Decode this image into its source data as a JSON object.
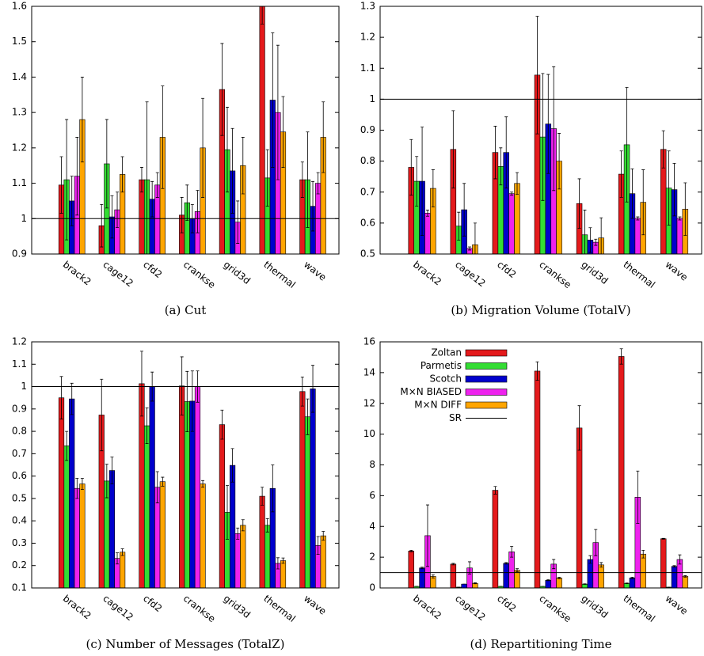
{
  "chart_data": [
    {
      "type": "bar",
      "caption": "(a) Cut",
      "categories": [
        "brack2",
        "cage12",
        "cfd2",
        "crankse",
        "grid3d",
        "thermal",
        "wave"
      ],
      "ylim": [
        0.9,
        1.6
      ],
      "yticks": [
        0.9,
        1,
        1.1,
        1.2,
        1.3,
        1.4,
        1.5,
        1.6
      ],
      "reference_line": {
        "value": 1
      },
      "series": [
        {
          "color": "#e41a1c",
          "values": [
            1.095,
            0.98,
            1.11,
            1.01,
            1.365,
            1.65,
            1.11
          ],
          "errors": [
            0.08,
            0.06,
            0.035,
            0.05,
            0.13,
            0.1,
            0.05
          ]
        },
        {
          "color": "#33dd33",
          "values": [
            1.11,
            1.155,
            1.11,
            1.045,
            1.195,
            1.115,
            1.11
          ],
          "errors": [
            0.17,
            0.125,
            0.22,
            0.05,
            0.12,
            0.08,
            0.135
          ]
        },
        {
          "color": "#0000cc",
          "values": [
            1.05,
            1.005,
            1.055,
            1.0,
            1.135,
            1.335,
            1.035
          ],
          "errors": [
            0.07,
            0.06,
            0.05,
            0.04,
            0.12,
            0.19,
            0.07
          ]
        },
        {
          "color": "#ee22ee",
          "values": [
            1.12,
            1.025,
            1.095,
            1.02,
            0.99,
            1.3,
            1.1
          ],
          "errors": [
            0.11,
            0.05,
            0.035,
            0.06,
            0.06,
            0.19,
            0.03
          ]
        },
        {
          "color": "#ffa500",
          "values": [
            1.28,
            1.125,
            1.23,
            1.2,
            1.15,
            1.245,
            1.23
          ],
          "errors": [
            0.12,
            0.05,
            0.145,
            0.14,
            0.08,
            0.1,
            0.1
          ]
        }
      ]
    },
    {
      "type": "bar",
      "caption": "(b) Migration Volume (TotalV)",
      "categories": [
        "brack2",
        "cage12",
        "cfd2",
        "crankse",
        "grid3d",
        "thermal",
        "wave"
      ],
      "ylim": [
        0.5,
        1.3
      ],
      "yticks": [
        0.5,
        0.6,
        0.7,
        0.8,
        0.9,
        1,
        1.1,
        1.2,
        1.3
      ],
      "reference_line": {
        "value": 1
      },
      "series": [
        {
          "color": "#e41a1c",
          "values": [
            0.78,
            0.838,
            0.828,
            1.078,
            0.663,
            0.758,
            0.838
          ],
          "errors": [
            0.09,
            0.125,
            0.085,
            0.19,
            0.08,
            0.075,
            0.06
          ]
        },
        {
          "color": "#33dd33",
          "values": [
            0.735,
            0.59,
            0.783,
            0.878,
            0.562,
            0.853,
            0.713
          ],
          "errors": [
            0.08,
            0.045,
            0.06,
            0.205,
            0.08,
            0.185,
            0.12
          ]
        },
        {
          "color": "#0000cc",
          "values": [
            0.735,
            0.643,
            0.828,
            0.92,
            0.545,
            0.695,
            0.708
          ],
          "errors": [
            0.175,
            0.085,
            0.115,
            0.16,
            0.04,
            0.08,
            0.085
          ]
        },
        {
          "color": "#ee22ee",
          "values": [
            0.632,
            0.518,
            0.695,
            0.905,
            0.538,
            0.615,
            0.615
          ],
          "errors": [
            0.01,
            0.005,
            0.005,
            0.2,
            0.01,
            0.005,
            0.005
          ]
        },
        {
          "color": "#ffa500",
          "values": [
            0.712,
            0.53,
            0.728,
            0.8,
            0.552,
            0.667,
            0.645
          ],
          "errors": [
            0.06,
            0.07,
            0.035,
            0.09,
            0.065,
            0.105,
            0.085
          ]
        }
      ]
    },
    {
      "type": "bar",
      "caption": "(c) Number of Messages (TotalZ)",
      "categories": [
        "brack2",
        "cage12",
        "cfd2",
        "crankse",
        "grid3d",
        "thermal",
        "wave"
      ],
      "ylim": [
        0.1,
        1.2
      ],
      "yticks": [
        0.1,
        0.2,
        0.3,
        0.4,
        0.5,
        0.6,
        0.7,
        0.8,
        0.9,
        1,
        1.1,
        1.2
      ],
      "reference_line": {
        "value": 1
      },
      "series": [
        {
          "color": "#e41a1c",
          "values": [
            0.95,
            0.873,
            1.013,
            1.003,
            0.83,
            0.51,
            0.978
          ],
          "errors": [
            0.095,
            0.16,
            0.145,
            0.13,
            0.065,
            0.04,
            0.065
          ]
        },
        {
          "color": "#33dd33",
          "values": [
            0.735,
            0.578,
            0.825,
            0.933,
            0.438,
            0.38,
            0.865
          ],
          "errors": [
            0.065,
            0.075,
            0.08,
            0.135,
            0.12,
            0.03,
            0.08
          ]
        },
        {
          "color": "#0000cc",
          "values": [
            0.945,
            0.625,
            1.0,
            0.935,
            0.648,
            0.545,
            0.99
          ],
          "errors": [
            0.07,
            0.06,
            0.065,
            0.135,
            0.075,
            0.105,
            0.105
          ]
        },
        {
          "color": "#ee22ee",
          "values": [
            0.545,
            0.232,
            0.55,
            1.0,
            0.343,
            0.21,
            0.29
          ],
          "errors": [
            0.045,
            0.025,
            0.07,
            0.07,
            0.025,
            0.025,
            0.04
          ]
        },
        {
          "color": "#ffa500",
          "values": [
            0.565,
            0.26,
            0.575,
            0.565,
            0.38,
            0.222,
            0.333
          ],
          "errors": [
            0.025,
            0.015,
            0.02,
            0.015,
            0.025,
            0.012,
            0.02
          ]
        }
      ]
    },
    {
      "type": "bar",
      "caption": "(d) Repartitioning Time",
      "categories": [
        "brack2",
        "cage12",
        "cfd2",
        "crankse",
        "grid3d",
        "thermal",
        "wave"
      ],
      "ylim": [
        0,
        16
      ],
      "yticks": [
        0,
        2,
        4,
        6,
        8,
        10,
        12,
        14,
        16
      ],
      "legend": "top-left",
      "reference_line": {
        "name": "SR",
        "value": 1
      },
      "series": [
        {
          "name": "Zoltan",
          "color": "#e41a1c",
          "values": [
            2.4,
            1.55,
            6.35,
            14.1,
            10.4,
            15.05,
            3.2
          ],
          "errors": [
            0.05,
            0.05,
            0.25,
            0.6,
            1.45,
            0.5,
            0.03
          ]
        },
        {
          "name": "Parmetis",
          "color": "#33dd33",
          "values": [
            0.1,
            0.05,
            0.1,
            0.1,
            0.25,
            0.3,
            0.05
          ],
          "errors": [
            0,
            0,
            0,
            0,
            0.02,
            0.02,
            0
          ]
        },
        {
          "name": "Scotch",
          "color": "#0000cc",
          "values": [
            1.3,
            0.25,
            1.6,
            0.5,
            1.85,
            0.65,
            1.4
          ],
          "errors": [
            0.05,
            0,
            0.05,
            0.03,
            0.25,
            0.05,
            0.05
          ]
        },
        {
          "name": "M×N BIASED",
          "color": "#ee22ee",
          "values": [
            3.4,
            1.3,
            2.35,
            1.55,
            2.95,
            5.9,
            1.85
          ],
          "errors": [
            2.0,
            0.4,
            0.35,
            0.3,
            0.85,
            1.7,
            0.3
          ]
        },
        {
          "name": "M×N DIFF",
          "color": "#ffa500",
          "values": [
            0.75,
            0.3,
            1.15,
            0.65,
            1.5,
            2.2,
            0.75
          ],
          "errors": [
            0.1,
            0.03,
            0.1,
            0.05,
            0.15,
            0.25,
            0.05
          ]
        }
      ]
    }
  ]
}
